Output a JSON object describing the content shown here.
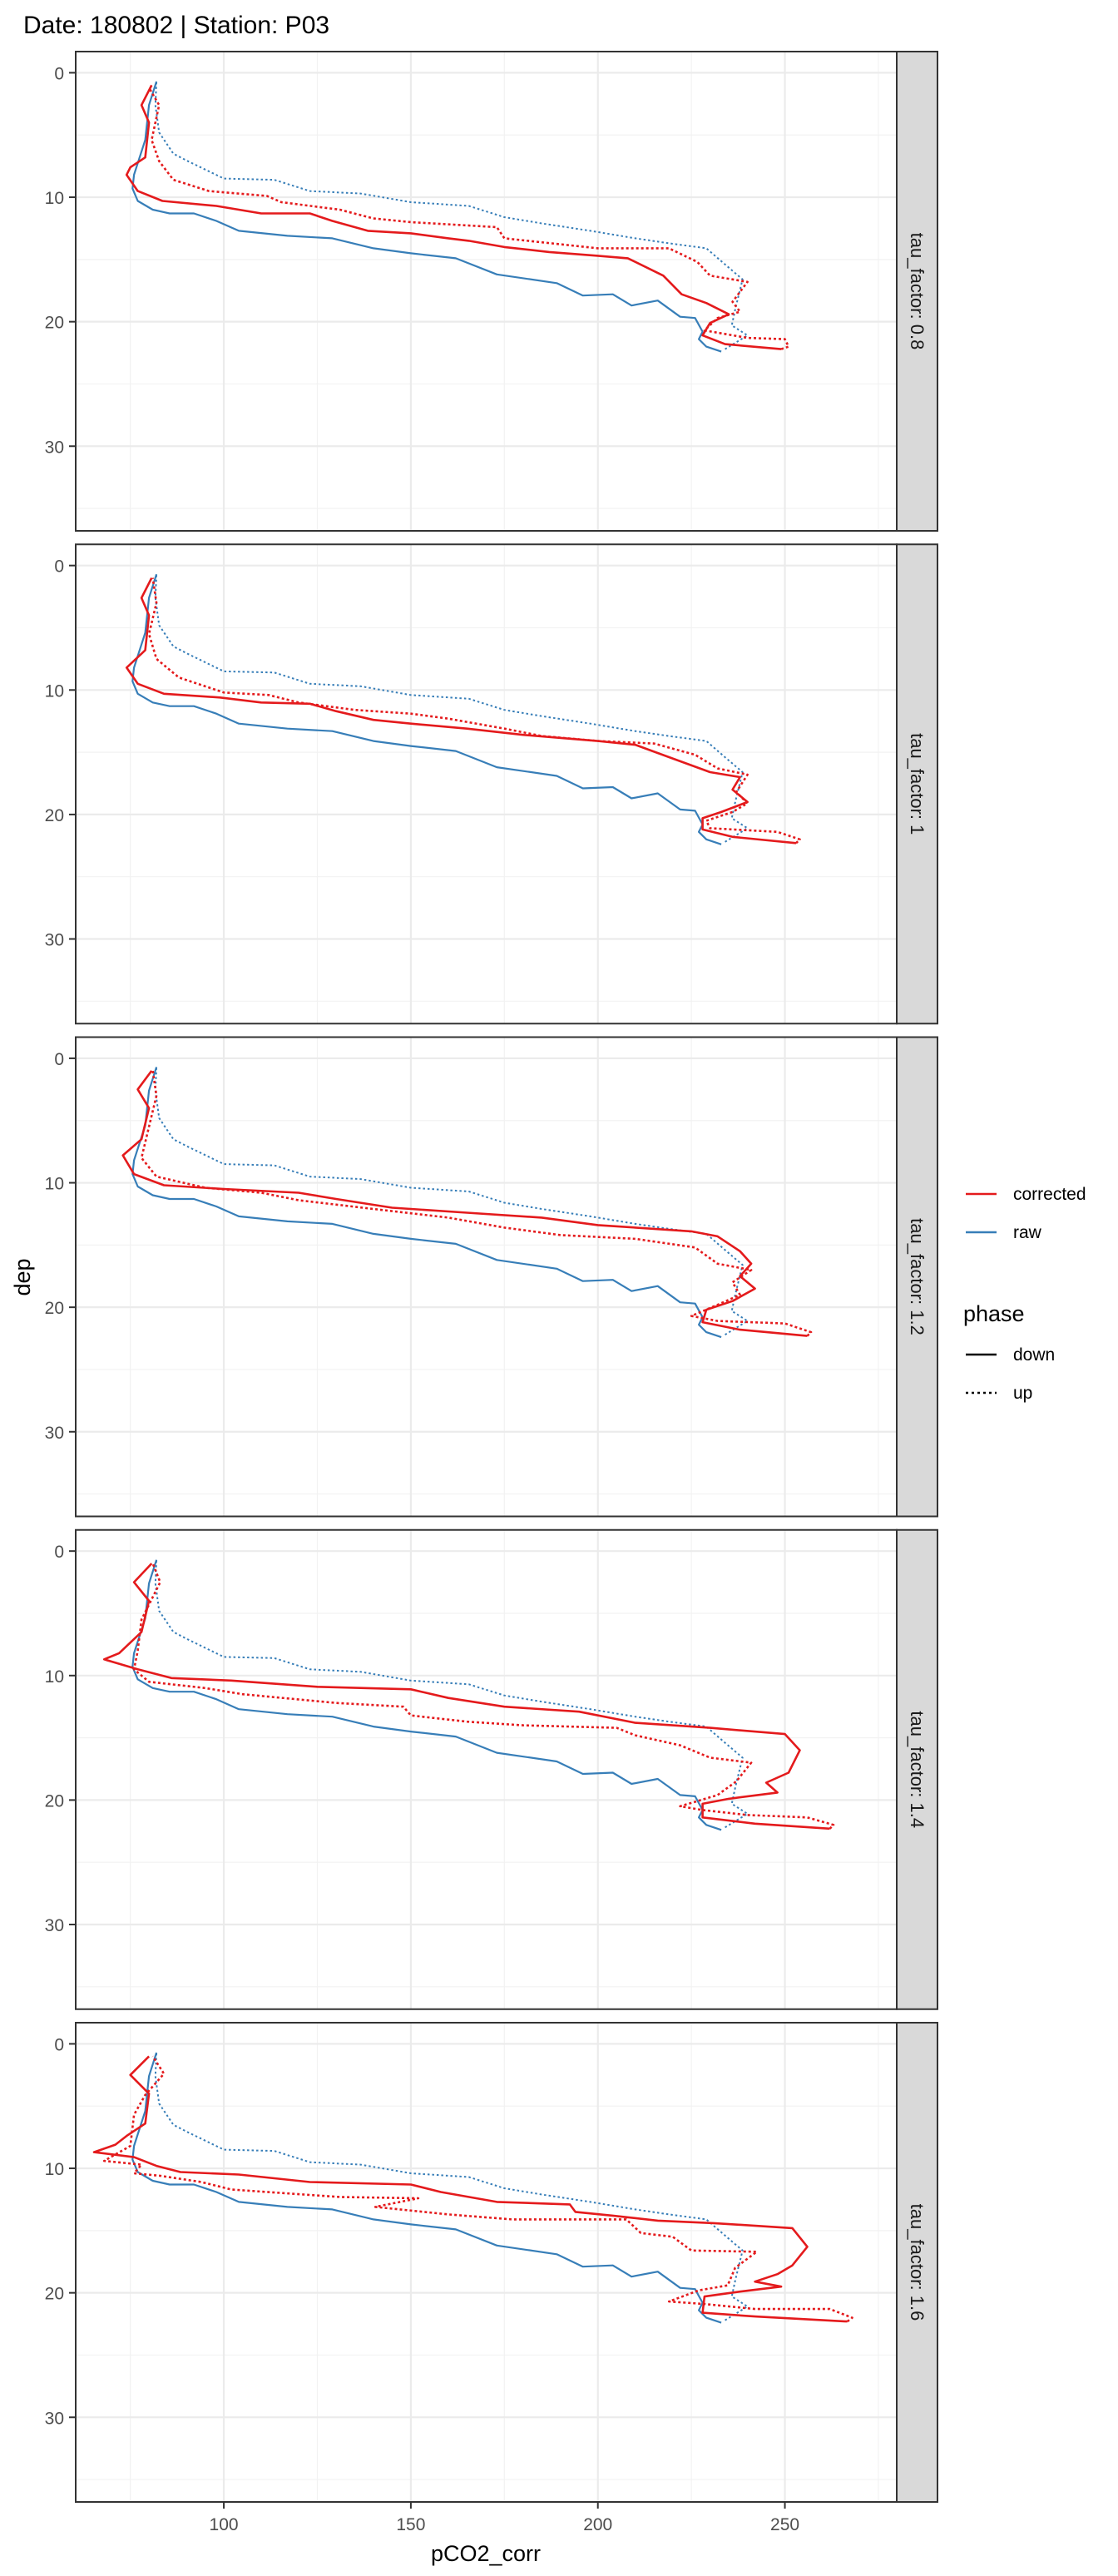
{
  "chart_data": {
    "type": "line",
    "title": "Date: 180802 | Station: P03",
    "xlabel": "pCO2_corr",
    "ylabel": "dep",
    "xlim": [
      60.4,
      279.9
    ],
    "ylim": [
      36.8,
      -1.7
    ],
    "y_reversed": true,
    "x_ticks": [
      100,
      150,
      200,
      250
    ],
    "y_ticks": [
      0,
      10,
      20,
      30
    ],
    "grid": true,
    "facet_label_prefix": "tau_factor: ",
    "legend": {
      "placement": "right",
      "colour_entries": [
        {
          "label": "corrected",
          "color": "#E41A1C"
        },
        {
          "label": "raw",
          "color": "#377EB8"
        }
      ],
      "phase_title": "phase",
      "phase_entries": [
        {
          "label": "down",
          "linetype": "solid"
        },
        {
          "label": "up",
          "linetype": "dotted"
        }
      ]
    },
    "raw": {
      "down": [
        [
          82,
          0.7
        ],
        [
          80,
          2.6
        ],
        [
          79,
          5.4
        ],
        [
          76,
          8.2
        ],
        [
          75.6,
          9.3
        ],
        [
          77,
          10.3
        ],
        [
          81,
          11
        ],
        [
          85.5,
          11.3
        ],
        [
          92,
          11.3
        ],
        [
          98,
          11.9
        ],
        [
          104,
          12.7
        ],
        [
          117,
          13.1
        ],
        [
          129,
          13.3
        ],
        [
          140,
          14.1
        ],
        [
          150,
          14.5
        ],
        [
          162,
          14.9
        ],
        [
          173,
          16.2
        ],
        [
          189,
          16.9
        ],
        [
          196,
          17.9
        ],
        [
          204,
          17.8
        ],
        [
          209,
          18.7
        ],
        [
          216,
          18.3
        ],
        [
          222,
          19.6
        ],
        [
          226,
          19.7
        ],
        [
          228,
          20.8
        ],
        [
          227,
          21.4
        ],
        [
          229,
          22
        ],
        [
          233,
          22.4
        ]
      ],
      "up": [
        [
          234,
          22.2
        ],
        [
          240,
          21.1
        ],
        [
          235.8,
          20.3
        ],
        [
          236.8,
          18.9
        ],
        [
          238.7,
          16.6
        ],
        [
          234,
          15.4
        ],
        [
          229,
          14.1
        ],
        [
          219,
          13.7
        ],
        [
          210,
          13.3
        ],
        [
          198,
          12.7
        ],
        [
          185,
          12.1
        ],
        [
          175,
          11.6
        ],
        [
          165.5,
          10.7
        ],
        [
          150,
          10.4
        ],
        [
          136.6,
          9.7
        ],
        [
          123,
          9.5
        ],
        [
          113.5,
          8.6
        ],
        [
          100,
          8.5
        ],
        [
          90.4,
          7.1
        ],
        [
          86.5,
          6.5
        ],
        [
          82.7,
          4.8
        ],
        [
          81.7,
          2.6
        ],
        [
          82,
          0.7
        ]
      ]
    },
    "panels": [
      {
        "tau_factor": "0.8",
        "corrected_down": [
          [
            80.7,
            1
          ],
          [
            78,
            2.6
          ],
          [
            80,
            4
          ],
          [
            79,
            6.8
          ],
          [
            75,
            7.6
          ],
          [
            74,
            8.2
          ],
          [
            77,
            9.5
          ],
          [
            83.6,
            10.3
          ],
          [
            98,
            10.7
          ],
          [
            104,
            11
          ],
          [
            110,
            11.3
          ],
          [
            123,
            11.3
          ],
          [
            129,
            11.9
          ],
          [
            138.5,
            12.7
          ],
          [
            150,
            12.9
          ],
          [
            160,
            13.3
          ],
          [
            165.5,
            13.5
          ],
          [
            175,
            14
          ],
          [
            187,
            14.4
          ],
          [
            200,
            14.7
          ],
          [
            208,
            14.9
          ],
          [
            217.5,
            16.3
          ],
          [
            222.4,
            17.8
          ],
          [
            229,
            18.5
          ],
          [
            235,
            19.4
          ],
          [
            230,
            20.1
          ],
          [
            228,
            21.1
          ],
          [
            234,
            21.8
          ],
          [
            249,
            22.2
          ]
        ],
        "corrected_up": [
          [
            249,
            22.2
          ],
          [
            251,
            22
          ],
          [
            250,
            21.4
          ],
          [
            240,
            21.3
          ],
          [
            228.5,
            20.7
          ],
          [
            232,
            19.7
          ],
          [
            238,
            19.2
          ],
          [
            236,
            18.4
          ],
          [
            240,
            16.8
          ],
          [
            230,
            16.3
          ],
          [
            226.6,
            15.2
          ],
          [
            219,
            14.1
          ],
          [
            200,
            14.1
          ],
          [
            175,
            13.3
          ],
          [
            173,
            12.4
          ],
          [
            150,
            12
          ],
          [
            140,
            11.7
          ],
          [
            131,
            11
          ],
          [
            115.4,
            10.4
          ],
          [
            111.5,
            9.9
          ],
          [
            96,
            9.5
          ],
          [
            86.5,
            8.6
          ],
          [
            82.7,
            7.1
          ],
          [
            80.7,
            5.4
          ],
          [
            82.7,
            2.6
          ],
          [
            80,
            1.2
          ]
        ]
      },
      {
        "tau_factor": "1",
        "corrected_down": [
          [
            80.7,
            1
          ],
          [
            78,
            2.6
          ],
          [
            80,
            4
          ],
          [
            79,
            6.8
          ],
          [
            74,
            8.2
          ],
          [
            77,
            9.5
          ],
          [
            84,
            10.3
          ],
          [
            99,
            10.6
          ],
          [
            110,
            11
          ],
          [
            123,
            11.1
          ],
          [
            130,
            11.7
          ],
          [
            140,
            12.4
          ],
          [
            150,
            12.7
          ],
          [
            165,
            13.1
          ],
          [
            180,
            13.6
          ],
          [
            200,
            14.1
          ],
          [
            210,
            14.4
          ],
          [
            220,
            15.5
          ],
          [
            230,
            16.6
          ],
          [
            238,
            17
          ],
          [
            236,
            18
          ],
          [
            240,
            19
          ],
          [
            233,
            19.8
          ],
          [
            228,
            20.3
          ],
          [
            228,
            21.2
          ],
          [
            236,
            21.8
          ],
          [
            253,
            22.3
          ]
        ],
        "corrected_up": [
          [
            253,
            22.3
          ],
          [
            254,
            22
          ],
          [
            248,
            21.4
          ],
          [
            230,
            21.1
          ],
          [
            229,
            20.5
          ],
          [
            236,
            19.8
          ],
          [
            240,
            19.1
          ],
          [
            237,
            18.2
          ],
          [
            240,
            16.8
          ],
          [
            232,
            16.3
          ],
          [
            226,
            15.2
          ],
          [
            215,
            14.3
          ],
          [
            200,
            14.1
          ],
          [
            185,
            13.7
          ],
          [
            175,
            13.1
          ],
          [
            160,
            12.3
          ],
          [
            150,
            11.9
          ],
          [
            135,
            11.6
          ],
          [
            120,
            11
          ],
          [
            112,
            10.4
          ],
          [
            100,
            10.2
          ],
          [
            88,
            9
          ],
          [
            82,
            7.5
          ],
          [
            80,
            5.5
          ],
          [
            82,
            3
          ],
          [
            81,
            1
          ]
        ]
      },
      {
        "tau_factor": "1.2",
        "corrected_down": [
          [
            80.7,
            1
          ],
          [
            77,
            2.5
          ],
          [
            80,
            4
          ],
          [
            78,
            6.5
          ],
          [
            73,
            7.8
          ],
          [
            76,
            9.3
          ],
          [
            84,
            10.2
          ],
          [
            100,
            10.5
          ],
          [
            120,
            10.8
          ],
          [
            130,
            11.3
          ],
          [
            145,
            12
          ],
          [
            165,
            12.4
          ],
          [
            185,
            12.8
          ],
          [
            200,
            13.4
          ],
          [
            225,
            13.9
          ],
          [
            232,
            14.3
          ],
          [
            238,
            15.5
          ],
          [
            241,
            16.5
          ],
          [
            238,
            17.5
          ],
          [
            242,
            18.5
          ],
          [
            236,
            19.5
          ],
          [
            229,
            20.2
          ],
          [
            228,
            21.2
          ],
          [
            238,
            21.8
          ],
          [
            256,
            22.3
          ]
        ],
        "corrected_up": [
          [
            256,
            22.3
          ],
          [
            257,
            22
          ],
          [
            250,
            21.3
          ],
          [
            232,
            21.1
          ],
          [
            225,
            20.7
          ],
          [
            232,
            19.8
          ],
          [
            238,
            19
          ],
          [
            236,
            18
          ],
          [
            241,
            17
          ],
          [
            232,
            16.5
          ],
          [
            226,
            15.2
          ],
          [
            210,
            14.5
          ],
          [
            190,
            14.2
          ],
          [
            175,
            13.6
          ],
          [
            160,
            12.8
          ],
          [
            140,
            12.1
          ],
          [
            120,
            11.4
          ],
          [
            110,
            10.8
          ],
          [
            95,
            10.4
          ],
          [
            82,
            9.5
          ],
          [
            78,
            8
          ],
          [
            80,
            5.5
          ],
          [
            82,
            3
          ],
          [
            81,
            1
          ]
        ]
      },
      {
        "tau_factor": "1.4",
        "corrected_down": [
          [
            80.7,
            1
          ],
          [
            76,
            2.5
          ],
          [
            80,
            4
          ],
          [
            78,
            6.5
          ],
          [
            72,
            8.2
          ],
          [
            68,
            8.7
          ],
          [
            77,
            9.5
          ],
          [
            86,
            10.2
          ],
          [
            102,
            10.4
          ],
          [
            125,
            10.9
          ],
          [
            150,
            11.1
          ],
          [
            160,
            11.8
          ],
          [
            175,
            12.5
          ],
          [
            195,
            12.9
          ],
          [
            210,
            13.8
          ],
          [
            230,
            14.2
          ],
          [
            250,
            14.7
          ],
          [
            254,
            16
          ],
          [
            251,
            17.8
          ],
          [
            245,
            18.6
          ],
          [
            248,
            19.4
          ],
          [
            235,
            19.9
          ],
          [
            228,
            20.3
          ],
          [
            228,
            21.4
          ],
          [
            242,
            21.9
          ],
          [
            262,
            22.3
          ]
        ],
        "corrected_up": [
          [
            262,
            22.3
          ],
          [
            263,
            22
          ],
          [
            256,
            21.4
          ],
          [
            240,
            21.2
          ],
          [
            228,
            20.8
          ],
          [
            222,
            20.5
          ],
          [
            232,
            19.6
          ],
          [
            237,
            18.5
          ],
          [
            241,
            17
          ],
          [
            230,
            16.6
          ],
          [
            222,
            15.6
          ],
          [
            210,
            14.8
          ],
          [
            205,
            14.2
          ],
          [
            180,
            14
          ],
          [
            165,
            13.7
          ],
          [
            150,
            13.2
          ],
          [
            148,
            12.5
          ],
          [
            130,
            12.2
          ],
          [
            105,
            11.5
          ],
          [
            95,
            11
          ],
          [
            80,
            10.5
          ],
          [
            76,
            9.5
          ],
          [
            77,
            8
          ],
          [
            78,
            5.5
          ],
          [
            83,
            2.5
          ],
          [
            81,
            1
          ]
        ]
      },
      {
        "tau_factor": "1.6",
        "corrected_down": [
          [
            80,
            1
          ],
          [
            75,
            2.5
          ],
          [
            80,
            4
          ],
          [
            79,
            6.4
          ],
          [
            74,
            7.4
          ],
          [
            71,
            8.1
          ],
          [
            65.3,
            8.7
          ],
          [
            76,
            9.1
          ],
          [
            82,
            9.8
          ],
          [
            88.4,
            10.3
          ],
          [
            104,
            10.5
          ],
          [
            123,
            11.1
          ],
          [
            150,
            11.3
          ],
          [
            158,
            11.9
          ],
          [
            173,
            12.7
          ],
          [
            192.5,
            12.9
          ],
          [
            194,
            13.5
          ],
          [
            204,
            13.8
          ],
          [
            216,
            14.2
          ],
          [
            231,
            14.4
          ],
          [
            252,
            14.8
          ],
          [
            256,
            16.3
          ],
          [
            252,
            17.8
          ],
          [
            248,
            18.5
          ],
          [
            242,
            19.1
          ],
          [
            249,
            19.5
          ],
          [
            238,
            19.9
          ],
          [
            228.5,
            20.3
          ],
          [
            228,
            21.6
          ],
          [
            242,
            21.9
          ],
          [
            266.7,
            22.3
          ]
        ],
        "corrected_up": [
          [
            266.7,
            22.3
          ],
          [
            268,
            22
          ],
          [
            262,
            21.3
          ],
          [
            242,
            21.3
          ],
          [
            228.5,
            20.9
          ],
          [
            219,
            20.7
          ],
          [
            227,
            19.8
          ],
          [
            234.7,
            19.4
          ],
          [
            236.7,
            18
          ],
          [
            242.5,
            16.7
          ],
          [
            225,
            16.6
          ],
          [
            220,
            15.5
          ],
          [
            211.5,
            15.2
          ],
          [
            207.6,
            14.1
          ],
          [
            177,
            14.1
          ],
          [
            160,
            13.7
          ],
          [
            140.5,
            13.1
          ],
          [
            152,
            12.4
          ],
          [
            131,
            12.3
          ],
          [
            102,
            11.7
          ],
          [
            94,
            11.1
          ],
          [
            83,
            10.6
          ],
          [
            76,
            10.4
          ],
          [
            78,
            9.7
          ],
          [
            68,
            9.4
          ],
          [
            75,
            8.2
          ],
          [
            76,
            5.7
          ],
          [
            79,
            4.1
          ],
          [
            84,
            2.4
          ],
          [
            81,
            1
          ]
        ]
      }
    ]
  }
}
